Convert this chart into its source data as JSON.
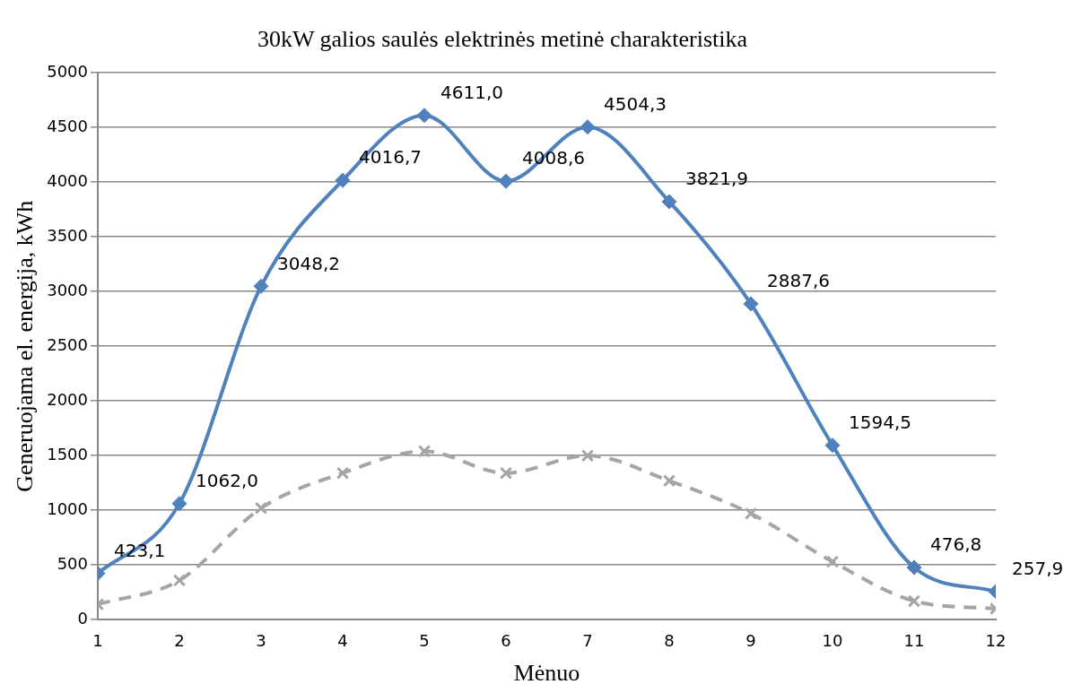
{
  "chart_data": {
    "type": "line",
    "title": "30kW galios saulės elektrinės metinė charakteristika",
    "xlabel": "Mėnuo",
    "ylabel": "Generuojama el. energija, kWh",
    "x": [
      1,
      2,
      3,
      4,
      5,
      6,
      7,
      8,
      9,
      10,
      11,
      12
    ],
    "xlim": [
      1,
      12
    ],
    "xticks": [
      1,
      2,
      3,
      4,
      5,
      6,
      7,
      8,
      9,
      10,
      11,
      12
    ],
    "ylim": [
      0,
      5000
    ],
    "yticks": [
      0,
      500,
      1000,
      1500,
      2000,
      2500,
      3000,
      3500,
      4000,
      4500,
      5000
    ],
    "grid": "y",
    "legend": false,
    "series": [
      {
        "color": "#4f81bd",
        "marker": "diamond",
        "line_style": "solid",
        "values": [
          423.1,
          1062.0,
          3048.2,
          4016.7,
          4611.0,
          4008.6,
          4504.3,
          3821.9,
          2887.6,
          1594.5,
          476.8,
          257.9
        ],
        "value_labels": [
          "423,1",
          "1062,0",
          "3048,2",
          "4016,7",
          "4611,0",
          "4008,6",
          "4504,3",
          "3821,9",
          "2887,6",
          "1594,5",
          "476,8",
          "257,9"
        ]
      },
      {
        "color": "#a5a5a5",
        "marker": "cross",
        "line_style": "dashed",
        "values": [
          140,
          360,
          1020,
          1340,
          1540,
          1340,
          1500,
          1270,
          970,
          530,
          170,
          100
        ]
      }
    ]
  }
}
